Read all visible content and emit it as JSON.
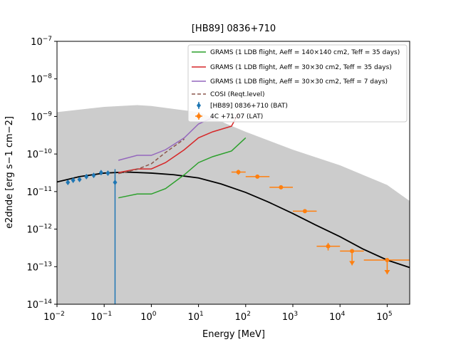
{
  "chart_data": {
    "type": "line",
    "title": "[HB89] 0836+710",
    "xlabel": "Energy [MeV]",
    "ylabel": "e2dnde [erg s−1 cm−2]",
    "xscale": "log",
    "yscale": "log",
    "xlim": [
      0.01,
      300000
    ],
    "ylim": [
      1e-14,
      1e-07
    ],
    "xticks": [
      {
        "value": 0.01,
        "label": "10−2"
      },
      {
        "value": 0.1,
        "label": "10−1"
      },
      {
        "value": 1,
        "label": "100"
      },
      {
        "value": 10,
        "label": "101"
      },
      {
        "value": 100,
        "label": "102"
      },
      {
        "value": 1000,
        "label": "103"
      },
      {
        "value": 10000,
        "label": "104"
      },
      {
        "value": 100000,
        "label": "105"
      }
    ],
    "yticks": [
      {
        "value": 1e-14,
        "label": "10−14"
      },
      {
        "value": 1e-13,
        "label": "10−13"
      },
      {
        "value": 1e-12,
        "label": "10−12"
      },
      {
        "value": 1e-11,
        "label": "10−11"
      },
      {
        "value": 1e-10,
        "label": "10−10"
      },
      {
        "value": 1e-09,
        "label": "10−9"
      },
      {
        "value": 1e-08,
        "label": "10−8"
      },
      {
        "value": 1e-07,
        "label": "10−7"
      }
    ],
    "legend": "upper right",
    "band": {
      "color": "#cccccc",
      "x": [
        0.01,
        0.1,
        0.5,
        1,
        10,
        100,
        1000,
        10000,
        100000,
        300000
      ],
      "values": [
        1.3e-09,
        1.8e-09,
        2e-09,
        1.9e-09,
        1.3e-09,
        3.9e-10,
        1.3e-10,
        5e-11,
        1.5e-11,
        5.6e-12
      ]
    },
    "series": [
      {
        "type": "line",
        "color": "#000000",
        "style": "solid",
        "x": [
          0.01,
          0.03,
          0.1,
          0.3,
          1,
          3,
          10,
          30,
          100,
          300,
          1000,
          3000,
          10000,
          30000,
          100000,
          300000
        ],
        "values": [
          1.8e-11,
          2.5e-11,
          3.1e-11,
          3.3e-11,
          3.1e-11,
          2.8e-11,
          2.3e-11,
          1.6e-11,
          9.5e-12,
          5.3e-12,
          2.6e-12,
          1.3e-12,
          6.3e-13,
          3e-13,
          1.5e-13,
          9.5e-14
        ]
      },
      {
        "type": "line",
        "name": "GRAMS (1 LDB flight, Aeff = 140×140 cm2, Teff = 35 days)",
        "color": "#2ca02c",
        "style": "solid",
        "x": [
          0.2,
          0.5,
          1,
          2,
          5,
          10,
          20,
          50,
          100
        ],
        "values": [
          6.8e-12,
          8.6e-12,
          8.6e-12,
          1.2e-11,
          2.8e-11,
          5.9e-11,
          8.5e-11,
          1.2e-10,
          2.7e-10
        ]
      },
      {
        "type": "line",
        "name": "GRAMS (1 LDB flight, Aeff = 30×30 cm2, Teff = 35 days)",
        "color": "#d62728",
        "style": "solid",
        "x": [
          0.2,
          0.5,
          1,
          2,
          5,
          10,
          20,
          50,
          70
        ],
        "values": [
          3.2e-11,
          4e-11,
          4e-11,
          5.9e-11,
          1.3e-10,
          2.7e-10,
          3.9e-10,
          5.5e-10,
          1.2e-09
        ]
      },
      {
        "type": "line",
        "name": "GRAMS (1 LDB flight, Aeff = 30×30 cm2, Teff = 7 days)",
        "color": "#9467bd",
        "style": "solid",
        "x": [
          0.2,
          0.5,
          1,
          2,
          5,
          10,
          20
        ],
        "values": [
          6.8e-11,
          9.2e-11,
          9.2e-11,
          1.3e-10,
          2.7e-10,
          6.3e-10,
          9.3e-10
        ]
      },
      {
        "type": "line",
        "name": "COSI (Reqt.level)",
        "color": "#8c564b",
        "style": "dashed",
        "x": [
          0.2,
          0.5,
          1,
          2,
          5
        ],
        "values": [
          3e-11,
          3.9e-11,
          5.5e-11,
          1.1e-10,
          2.5e-10
        ]
      },
      {
        "type": "errorbar",
        "name": "[HB89] 0836+710 (BAT)",
        "color": "#1f77b4",
        "marker": "diamond",
        "x": [
          0.017,
          0.022,
          0.03,
          0.042,
          0.06,
          0.086,
          0.12,
          0.17
        ],
        "values": [
          1.75e-11,
          2e-11,
          2.1e-11,
          2.5e-11,
          2.7e-11,
          3.2e-11,
          3.1e-11,
          1.75e-11
        ],
        "yerr": [
          2e-12,
          2e-12,
          2e-12,
          2e-12,
          2e-12,
          3e-12,
          3e-12,
          2.2e-11
        ]
      },
      {
        "type": "errorbar",
        "name": "4C +71.07 (LAT)",
        "color": "#ff7f0e",
        "marker": "circle",
        "x": [
          70,
          177,
          560,
          1800,
          5600,
          18000,
          100000
        ],
        "x_low": [
          50,
          100,
          320,
          1000,
          3200,
          10000,
          32000
        ],
        "x_high": [
          100,
          320,
          1000,
          3200,
          10000,
          32000,
          300000
        ],
        "values": [
          3.3e-11,
          2.5e-11,
          1.3e-11,
          3e-12,
          3.5e-13,
          2.6e-13,
          1.5e-13
        ],
        "yerr": [
          5e-12,
          2e-12,
          1e-12,
          3e-13,
          8e-14,
          0,
          0
        ],
        "uplims": [
          false,
          false,
          false,
          false,
          false,
          true,
          true
        ]
      }
    ]
  }
}
